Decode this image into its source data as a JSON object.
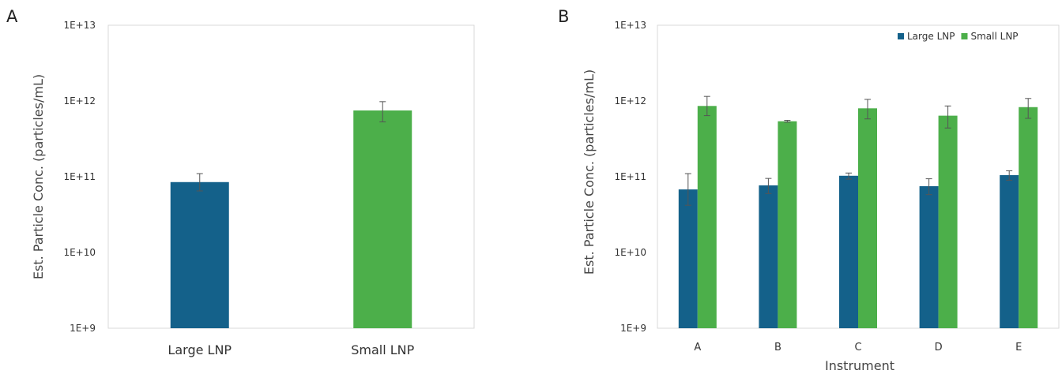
{
  "chart_data": [
    {
      "panel": "A",
      "type": "bar",
      "log_scale": true,
      "ylabel": "Est. Particle Conc. (particles/mL)",
      "xlabel": "",
      "ylim": [
        1000000000.0,
        10000000000000.0
      ],
      "yticks": [
        "1E+9",
        "1E+10",
        "1E+11",
        "1E+12",
        "1E+13"
      ],
      "categories": [
        "Large LNP",
        "Small LNP"
      ],
      "values": [
        85000000000.0,
        750000000000.0
      ],
      "err_low": [
        65000000000.0,
        530000000000.0
      ],
      "err_high": [
        110000000000.0,
        980000000000.0
      ],
      "colors": [
        "#14618a",
        "#4caf4a"
      ],
      "grid": false,
      "legend": null
    },
    {
      "panel": "B",
      "type": "bar",
      "log_scale": true,
      "ylabel": "Est. Particle Conc. (particles/mL)",
      "xlabel": "Instrument",
      "ylim": [
        1000000000.0,
        10000000000000.0
      ],
      "yticks": [
        "1E+9",
        "1E+10",
        "1E+11",
        "1E+12",
        "1E+13"
      ],
      "categories": [
        "A",
        "B",
        "C",
        "D",
        "E"
      ],
      "series": [
        {
          "name": "Large LNP",
          "color": "#14618a",
          "values": [
            68000000000.0,
            77000000000.0,
            103000000000.0,
            75000000000.0,
            105000000000.0
          ],
          "err_low": [
            42000000000.0,
            60000000000.0,
            93000000000.0,
            58000000000.0,
            90000000000.0
          ],
          "err_high": [
            110000000000.0,
            95000000000.0,
            112000000000.0,
            94000000000.0,
            120000000000.0
          ]
        },
        {
          "name": "Small LNP",
          "color": "#4caf4a",
          "values": [
            860000000000.0,
            540000000000.0,
            800000000000.0,
            640000000000.0,
            830000000000.0
          ],
          "err_low": [
            640000000000.0,
            525000000000.0,
            580000000000.0,
            440000000000.0,
            590000000000.0
          ],
          "err_high": [
            1150000000000.0,
            555000000000.0,
            1050000000000.0,
            860000000000.0,
            1080000000000.0
          ]
        }
      ],
      "grid": false,
      "legend": "top-right"
    }
  ]
}
